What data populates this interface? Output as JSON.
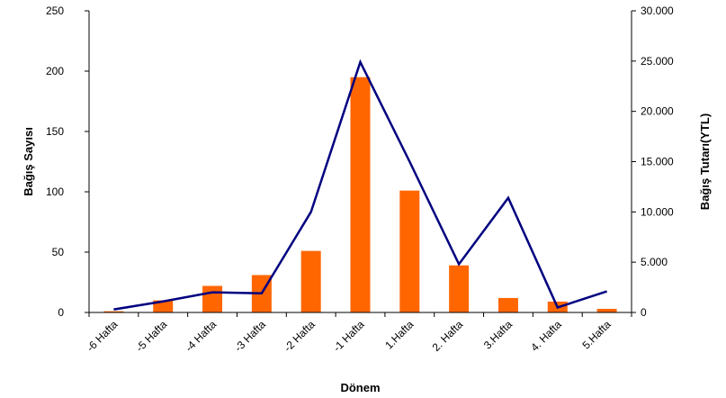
{
  "chart_data": {
    "type": "bar",
    "title": "",
    "xlabel": "Dönem",
    "ylabel": "Bağış Sayısı",
    "y2label": "Bağış Tutarı(YTL)",
    "categories": [
      "-6 Hafta",
      "-5 Hafta",
      "-4 Hafta",
      "-3 Hafta",
      "-2 Hafta",
      "-1 Hafta",
      "1.Hafta",
      "2. Hafta",
      "3.Hafta",
      "4. Hafta",
      "5.Hafta"
    ],
    "ylim": [
      0,
      250
    ],
    "y2lim": [
      0,
      30000
    ],
    "yticks": [
      "0",
      "50",
      "100",
      "150",
      "200",
      "250"
    ],
    "y2ticks": [
      "0",
      "5.000",
      "10.000",
      "15.000",
      "20.000",
      "25.000",
      "30.000"
    ],
    "series": [
      {
        "type": "bar",
        "axis": "left",
        "color": "#FF6600",
        "values": [
          1,
          10,
          22,
          31,
          51,
          195,
          101,
          39,
          12,
          9,
          3
        ]
      },
      {
        "type": "line",
        "axis": "right",
        "color": "#000080",
        "values": [
          300,
          1100,
          2000,
          1900,
          10000,
          24900,
          15000,
          4800,
          11400,
          500,
          2100
        ]
      }
    ],
    "grid": false,
    "legend": "none"
  }
}
